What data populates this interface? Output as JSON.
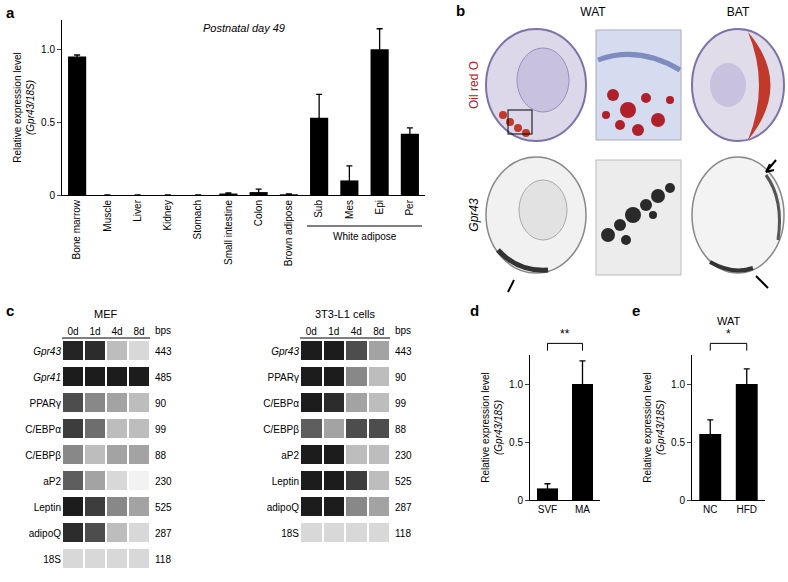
{
  "chart_data": [
    {
      "panel": "a",
      "type": "bar",
      "title": "Postnatal day 49",
      "y_label": [
        "Relative expression level",
        "(Gpr43/18S)"
      ],
      "categories": [
        "Bone marrow",
        "Muscle",
        "Liver",
        "Kidney",
        "Stomach",
        "Small intestine",
        "Colon",
        "Brown adipose",
        "Sub",
        "Mes",
        "Epi",
        "Per"
      ],
      "values": [
        0.95,
        0,
        0,
        0,
        0,
        0.01,
        0.02,
        0.005,
        0.53,
        0.1,
        1.0,
        0.42
      ],
      "errors": [
        0.01,
        0,
        0,
        0,
        0,
        0.005,
        0.02,
        0.003,
        0.16,
        0.1,
        0.14,
        0.04
      ],
      "group": {
        "label": "White adipose",
        "categories": [
          "Sub",
          "Mes",
          "Epi",
          "Per"
        ]
      },
      "color": "#000000",
      "ylim": [
        0,
        1.2
      ],
      "yticks": [
        0,
        0.5,
        {
          "value": 1,
          "label": "1.0"
        }
      ]
    },
    {
      "panel": "c",
      "type": "heatmap",
      "zlim": [
        0,
        1
      ],
      "gels": [
        {
          "title": "MEF",
          "lanes": [
            "0d",
            "1d",
            "4d",
            "8d"
          ],
          "unit": "bps",
          "genes": [
            "Gpr43",
            "Gpr41",
            "PPARγ",
            "C/EBPα",
            "C/EBPβ",
            "aP2",
            "Leptin",
            "adipoQ",
            "18S"
          ],
          "sizes": [
            443,
            485,
            90,
            99,
            88,
            230,
            525,
            287,
            118
          ],
          "intensity": [
            [
              0.05,
              0.1,
              0.8,
              0.9
            ],
            [
              0,
              0,
              0,
              0
            ],
            [
              0.3,
              0.6,
              0.7,
              0.8
            ],
            [
              0.2,
              0.5,
              0.8,
              0.8
            ],
            [
              0.6,
              0.8,
              0.7,
              0.7
            ],
            [
              0.4,
              0.7,
              0.9,
              1
            ],
            [
              0,
              0.2,
              0.6,
              0.7
            ],
            [
              0.1,
              0.3,
              0.8,
              0.9
            ],
            [
              0.9,
              0.9,
              0.9,
              0.9
            ]
          ]
        },
        {
          "title": "3T3-L1 cells",
          "lanes": [
            "0d",
            "1d",
            "4d",
            "8d"
          ],
          "unit": "bps",
          "genes": [
            "Gpr43",
            "PPARγ",
            "C/EBPα",
            "C/EBPβ",
            "aP2",
            "Leptin",
            "adipoQ",
            "18S"
          ],
          "sizes": [
            443,
            90,
            99,
            88,
            230,
            525,
            287,
            118
          ],
          "intensity": [
            [
              0,
              0,
              0.3,
              0.7
            ],
            [
              0,
              0,
              0.6,
              0.8
            ],
            [
              0,
              0.1,
              0.7,
              0.8
            ],
            [
              0.4,
              0.7,
              0.3,
              0.3
            ],
            [
              0,
              0,
              0.8,
              0.8
            ],
            [
              0,
              0,
              0.2,
              0.8
            ],
            [
              0,
              0,
              0.6,
              0.7
            ],
            [
              0.9,
              0.9,
              0.9,
              0.9
            ]
          ]
        }
      ]
    },
    {
      "panel": "d",
      "type": "bar",
      "y_label": [
        "Relative expression level",
        "(Gpr43/18S)"
      ],
      "categories": [
        "SVF",
        "MA"
      ],
      "values": [
        0.1,
        1.0
      ],
      "errors": [
        0.04,
        0.2
      ],
      "significance": "**",
      "color": "#000000",
      "ylim": [
        0,
        1.25
      ],
      "yticks": [
        0,
        0.5,
        {
          "value": 1,
          "label": "1.0"
        }
      ]
    },
    {
      "panel": "e",
      "type": "bar",
      "title": "WAT",
      "y_label": [
        "Relative expression level",
        "(Gpr43/18S)"
      ],
      "categories": [
        "NC",
        "HFD"
      ],
      "values": [
        0.57,
        1.0
      ],
      "errors": [
        0.12,
        0.13
      ],
      "significance": "*",
      "color": "#000000",
      "ylim": [
        0,
        1.25
      ],
      "yticks": [
        0,
        0.5,
        {
          "value": 1,
          "label": "1.0"
        }
      ]
    }
  ],
  "images": {
    "panel": "b",
    "columns": [
      "WAT",
      "BAT"
    ],
    "rows": [
      "Oil red O",
      "Gpr43"
    ]
  }
}
